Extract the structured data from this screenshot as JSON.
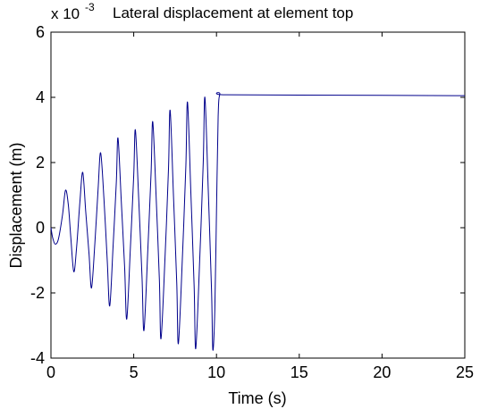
{
  "chart_data": {
    "type": "line",
    "title": "Lateral displacement at element top",
    "xlabel": "Time (s)",
    "ylabel": "Displacement (m)",
    "y_multiplier": {
      "base": "x 10",
      "exponent": "-3"
    },
    "xlim": [
      0,
      25
    ],
    "ylim": [
      -4,
      6
    ],
    "x_ticks": [
      0,
      5,
      10,
      15,
      20,
      25
    ],
    "x_tick_labels": [
      "0",
      "5",
      "10",
      "15",
      "20",
      "25"
    ],
    "y_ticks": [
      -4,
      -2,
      0,
      2,
      4,
      6
    ],
    "y_tick_labels": [
      "-4",
      "-2",
      "0",
      "2",
      "4",
      "6"
    ],
    "grid": false,
    "line_color": "#00008B",
    "series": [
      {
        "values": [
          [
            0.0,
            0.0
          ],
          [
            0.1,
            -0.3
          ],
          [
            0.25,
            -0.5
          ],
          [
            0.45,
            -0.35
          ],
          [
            0.7,
            0.4
          ],
          [
            0.88,
            1.15
          ],
          [
            1.05,
            0.7
          ],
          [
            1.2,
            -0.3
          ],
          [
            1.38,
            -1.35
          ],
          [
            1.55,
            -0.6
          ],
          [
            1.75,
            0.8
          ],
          [
            1.92,
            1.7
          ],
          [
            2.1,
            0.5
          ],
          [
            2.3,
            -0.8
          ],
          [
            2.45,
            -1.85
          ],
          [
            2.65,
            -0.5
          ],
          [
            2.85,
            1.2
          ],
          [
            3.0,
            2.3
          ],
          [
            3.2,
            0.9
          ],
          [
            3.4,
            -1.0
          ],
          [
            3.55,
            -2.4
          ],
          [
            3.75,
            -0.6
          ],
          [
            3.95,
            1.4
          ],
          [
            4.05,
            2.75
          ],
          [
            4.25,
            0.8
          ],
          [
            4.45,
            -1.2
          ],
          [
            4.58,
            -2.8
          ],
          [
            4.8,
            -0.6
          ],
          [
            5.0,
            1.6
          ],
          [
            5.1,
            3.0
          ],
          [
            5.3,
            0.9
          ],
          [
            5.5,
            -1.5
          ],
          [
            5.62,
            -3.15
          ],
          [
            5.85,
            -0.7
          ],
          [
            6.05,
            1.7
          ],
          [
            6.15,
            3.25
          ],
          [
            6.35,
            1.0
          ],
          [
            6.55,
            -1.6
          ],
          [
            6.65,
            -3.4
          ],
          [
            6.9,
            -0.8
          ],
          [
            7.1,
            1.8
          ],
          [
            7.2,
            3.6
          ],
          [
            7.4,
            1.0
          ],
          [
            7.6,
            -1.7
          ],
          [
            7.7,
            -3.55
          ],
          [
            7.95,
            -0.8
          ],
          [
            8.15,
            1.9
          ],
          [
            8.25,
            3.85
          ],
          [
            8.45,
            1.1
          ],
          [
            8.65,
            -1.8
          ],
          [
            8.75,
            -3.7
          ],
          [
            9.0,
            -0.8
          ],
          [
            9.2,
            2.0
          ],
          [
            9.3,
            4.0
          ],
          [
            9.5,
            1.2
          ],
          [
            9.7,
            -1.9
          ],
          [
            9.78,
            -3.75
          ],
          [
            9.9,
            -2.5
          ],
          [
            10.0,
            0.5
          ],
          [
            10.1,
            3.4
          ],
          [
            10.2,
            4.1
          ],
          [
            10.4,
            4.08
          ],
          [
            15.0,
            4.07
          ],
          [
            20.0,
            4.06
          ],
          [
            25.0,
            4.05
          ]
        ]
      }
    ]
  }
}
